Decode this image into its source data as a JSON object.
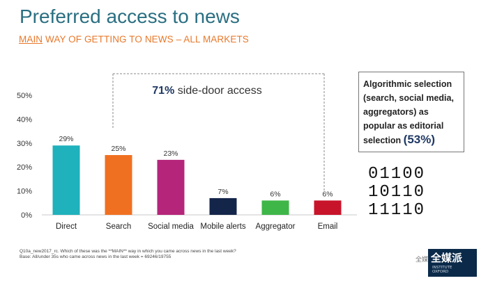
{
  "header": {
    "title": "Preferred access to news",
    "subtitle_main": "MAIN",
    "subtitle_rest": " WAY OF GETTING TO NEWS – ALL MARKETS"
  },
  "callout": {
    "pct": "71%",
    "text": " side-door access"
  },
  "algo_box": {
    "text": "Algorithmic selection (search, social media, aggregators) as popular as editorial selection ",
    "pct": "(53%)"
  },
  "binary": [
    "01100",
    "10110",
    "11110"
  ],
  "footnote": {
    "line1": "Q10a_new2017_rc. Which of these was the **MAIN** way in which you came across news in the last week?",
    "line2": "Base: All/under 35s who came across news in the last week = 69246/19755"
  },
  "watermark": "全媒派",
  "logo": {
    "big": "全媒派",
    "small_1": "INSTITUTE",
    "small_2": "OXFORD"
  },
  "chart_data": {
    "type": "bar",
    "categories": [
      "Direct",
      "Search",
      "Social media",
      "Mobile alerts",
      "Aggregator",
      "Email"
    ],
    "values": [
      29,
      25,
      23,
      7,
      6,
      6
    ],
    "value_labels": [
      "29%",
      "25%",
      "23%",
      "7%",
      "6%",
      "6%"
    ],
    "colors": [
      "#1fb1bc",
      "#f07021",
      "#b5267a",
      "#14254a",
      "#3fb648",
      "#c8142b"
    ],
    "ylim": [
      0,
      50
    ],
    "yticks": [
      0,
      10,
      20,
      30,
      40,
      50
    ],
    "ytick_labels": [
      "0%",
      "10%",
      "20%",
      "30%",
      "40%",
      "50%"
    ],
    "grid": false,
    "xlabel": "",
    "ylabel": ""
  }
}
